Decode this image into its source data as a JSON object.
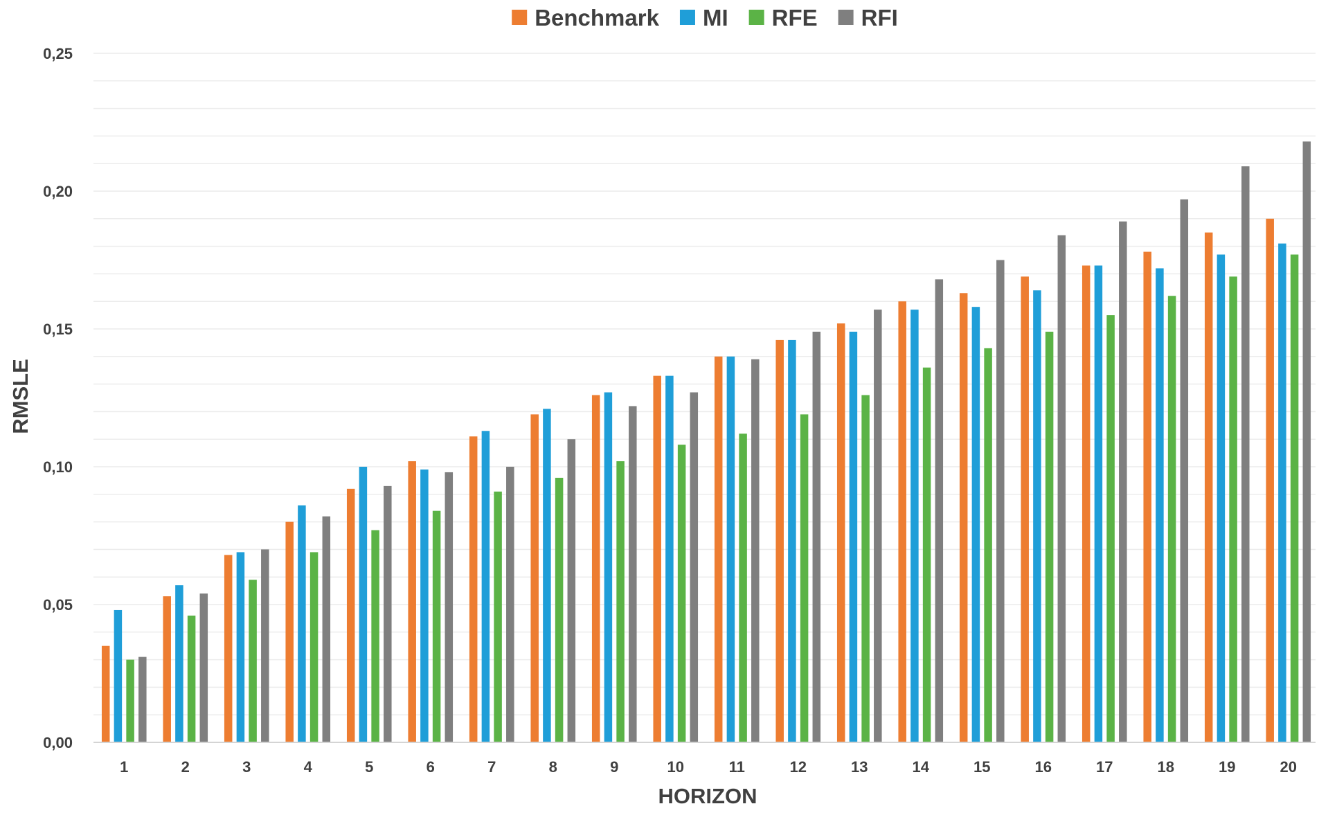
{
  "chart_data": {
    "type": "bar",
    "title": "",
    "xlabel": "HORIZON",
    "ylabel": "RMSLE",
    "ylim": [
      0,
      0.25
    ],
    "yticks": [
      "0,00",
      "0,05",
      "0,10",
      "0,15",
      "0,20",
      "0,25"
    ],
    "grid": true,
    "legend_position": "top-center",
    "categories": [
      "1",
      "2",
      "3",
      "4",
      "5",
      "6",
      "7",
      "8",
      "9",
      "10",
      "11",
      "12",
      "13",
      "14",
      "15",
      "16",
      "17",
      "18",
      "19",
      "20"
    ],
    "series": [
      {
        "name": "Benchmark",
        "color": "#ed7d31",
        "values": [
          0.035,
          0.053,
          0.068,
          0.08,
          0.092,
          0.102,
          0.111,
          0.119,
          0.126,
          0.133,
          0.14,
          0.146,
          0.152,
          0.16,
          0.163,
          0.169,
          0.173,
          0.178,
          0.185,
          0.19
        ]
      },
      {
        "name": "MI",
        "color": "#1f9ed8",
        "values": [
          0.048,
          0.057,
          0.069,
          0.086,
          0.1,
          0.099,
          0.113,
          0.121,
          0.127,
          0.133,
          0.14,
          0.146,
          0.149,
          0.157,
          0.158,
          0.164,
          0.173,
          0.172,
          0.177,
          0.181
        ]
      },
      {
        "name": "RFE",
        "color": "#5bb346",
        "values": [
          0.03,
          0.046,
          0.059,
          0.069,
          0.077,
          0.084,
          0.091,
          0.096,
          0.102,
          0.108,
          0.112,
          0.119,
          0.126,
          0.136,
          0.143,
          0.149,
          0.155,
          0.162,
          0.169,
          0.177
        ]
      },
      {
        "name": "RFI",
        "color": "#7f7f7f",
        "values": [
          0.031,
          0.054,
          0.07,
          0.082,
          0.093,
          0.098,
          0.1,
          0.11,
          0.122,
          0.127,
          0.139,
          0.149,
          0.157,
          0.168,
          0.175,
          0.184,
          0.189,
          0.197,
          0.209,
          0.218
        ]
      }
    ]
  }
}
